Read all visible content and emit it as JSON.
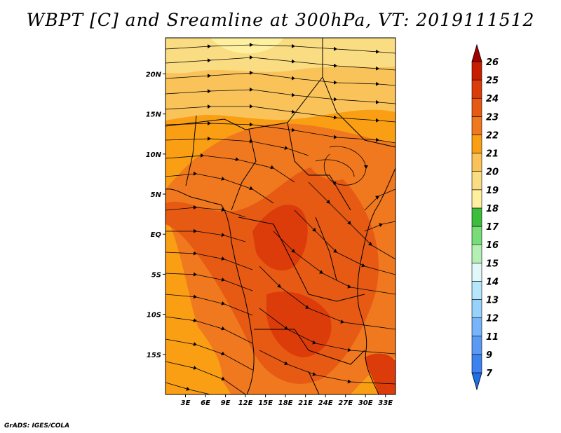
{
  "title": "WBPT [C] and Sreamline at 300hPa, VT: 2019111512",
  "credit": "GrADS: IGES/COLA",
  "map": {
    "lat_labels": [
      {
        "lat": 20,
        "text": "20N"
      },
      {
        "lat": 15,
        "text": "15N"
      },
      {
        "lat": 10,
        "text": "10N"
      },
      {
        "lat": 5,
        "text": "5N"
      },
      {
        "lat": 0,
        "text": "EQ"
      },
      {
        "lat": -5,
        "text": "5S"
      },
      {
        "lat": -10,
        "text": "10S"
      },
      {
        "lat": -15,
        "text": "15S"
      }
    ],
    "lon_labels": [
      {
        "lon": 3,
        "text": "3E"
      },
      {
        "lon": 6,
        "text": "6E"
      },
      {
        "lon": 9,
        "text": "9E"
      },
      {
        "lon": 12,
        "text": "12E"
      },
      {
        "lon": 15,
        "text": "15E"
      },
      {
        "lon": 18,
        "text": "18E"
      },
      {
        "lon": 21,
        "text": "21E"
      },
      {
        "lon": 24,
        "text": "24E"
      },
      {
        "lon": 27,
        "text": "27E"
      },
      {
        "lon": 30,
        "text": "30E"
      },
      {
        "lon": 33,
        "text": "33E"
      }
    ],
    "lon_range": [
      0,
      34.5
    ],
    "lat_range": [
      -20,
      24.5
    ]
  },
  "colorbar": {
    "labels": [
      "7",
      "9",
      "11",
      "12",
      "13",
      "14",
      "15",
      "16",
      "17",
      "18",
      "19",
      "20",
      "21",
      "22",
      "23",
      "24",
      "25",
      "26"
    ],
    "colors": [
      "#1e6ee6",
      "#3c82f0",
      "#5a9af5",
      "#78b4fa",
      "#96d2fa",
      "#b4e6fc",
      "#e1f8fa",
      "#b4f0b4",
      "#78dc78",
      "#3cbe3c",
      "#fff0a0",
      "#fadc82",
      "#fac35a",
      "#fa9f14",
      "#f0781e",
      "#e65a14",
      "#dc3c0a",
      "#c81e00",
      "#a00000"
    ]
  }
}
